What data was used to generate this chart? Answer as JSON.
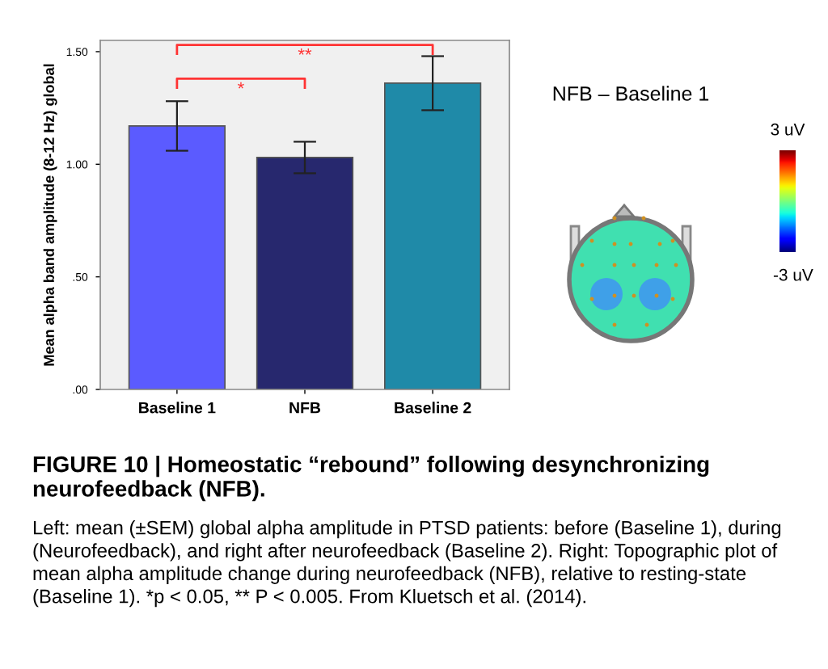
{
  "chart_data": [
    {
      "type": "bar",
      "ylabel": "Mean alpha band amplitude (8-12 Hz) global",
      "categories": [
        "Baseline 1",
        "NFB",
        "Baseline 2"
      ],
      "values": [
        1.17,
        1.03,
        1.36
      ],
      "colors": [
        "#5b5bff",
        "#27286e",
        "#1f8aa8"
      ],
      "errors": [
        [
          1.06,
          1.28
        ],
        [
          0.96,
          1.1
        ],
        [
          1.24,
          1.48
        ]
      ],
      "ylim": [
        0,
        1.55
      ],
      "yticks": [
        {
          "value": 0,
          "label": ".00"
        },
        {
          "value": 0.5,
          "label": ".50"
        },
        {
          "value": 1.0,
          "label": "1.00"
        },
        {
          "value": 1.5,
          "label": "1.50"
        }
      ],
      "grid": false,
      "annotations": [
        "*",
        "**",
        "FIGURE 10 | Homeostatic “rebound” following desynchronizing neurofeedback (NFB).",
        "Left: mean (±SEM) global alpha amplitude in PTSD patients: before (Baseline 1), during (Neurofeedback), and right after neurofeedback (Baseline 2). Right: Topographic plot of mean alpha amplitude change during neurofeedback (NFB), relative to resting-state (Baseline 1). *p < 0.05, ** P < 0.005. From Kluetsch et al. (2014)."
      ]
    },
    {
      "type": "other",
      "title": "NFB – Baseline 1",
      "annotations": [
        "3 uV",
        "-3 uV"
      ]
    }
  ]
}
